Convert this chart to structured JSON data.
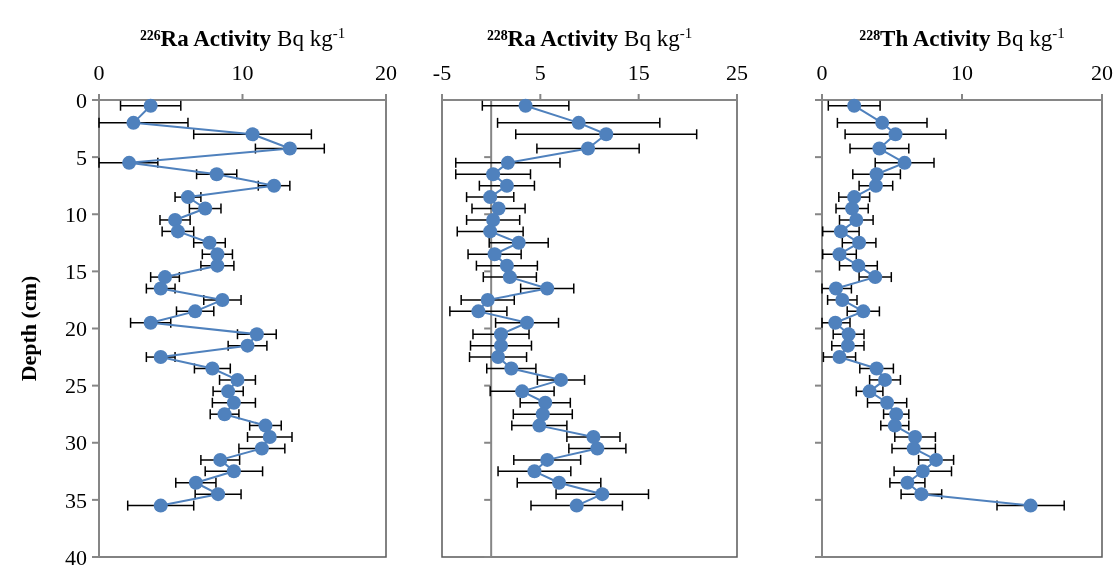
{
  "chart_data": [
    {
      "type": "line",
      "title": "²²⁶Ra Activity",
      "xlabel": "Bq kg$^{-1}$",
      "ylabel": "Depth (cm)",
      "xlim": [
        0,
        20
      ],
      "xticks": [
        0,
        10,
        20
      ],
      "ylim": [
        40,
        0
      ],
      "yticks": [
        0,
        5,
        10,
        15,
        20,
        25,
        30,
        35,
        40
      ],
      "marker": "circle",
      "line_style": "solid",
      "series": [
        {
          "color": "#4f81bd",
          "x": [
            3.6,
            2.4,
            10.7,
            13.3,
            2.1,
            8.2,
            12.2,
            6.2,
            7.4,
            5.3,
            5.5,
            7.7,
            8.25,
            8.25,
            4.6,
            4.3,
            8.6,
            6.7,
            3.6,
            11.0,
            10.35,
            4.3,
            7.9,
            9.65,
            9.0,
            9.4,
            8.75,
            11.6,
            11.9,
            11.35,
            8.45,
            9.4,
            6.75,
            8.3,
            4.3
          ],
          "values": [
            0.5,
            2,
            3,
            4.25,
            5.5,
            6.5,
            7.5,
            8.5,
            9.5,
            10.5,
            11.5,
            12.5,
            13.5,
            14.5,
            15.5,
            16.5,
            17.5,
            18.5,
            19.5,
            20.5,
            21.5,
            22.5,
            23.5,
            24.5,
            25.5,
            26.5,
            27.5,
            28.5,
            29.5,
            30.5,
            31.5,
            32.5,
            33.5,
            34.5,
            35.5
          ],
          "xerrors": [
            2.1,
            [
              0,
              6.2
            ],
            4.1,
            2.4,
            [
              0,
              4.1
            ],
            1.4,
            1.1,
            0.9,
            1.1,
            1.05,
            1.1,
            1.1,
            1.05,
            1.15,
            1.0,
            1.0,
            1.3,
            1.3,
            1.4,
            1.35,
            1.35,
            1.0,
            1.25,
            1.25,
            1.05,
            1.5,
            1.0,
            1.1,
            1.55,
            1.6,
            1.35,
            2.0,
            1.4,
            1.6,
            2.3
          ]
        }
      ]
    },
    {
      "type": "line",
      "title": "²²⁸Ra Activity",
      "xlabel": "Bq kg$^{-1}$",
      "xlim": [
        -5,
        25
      ],
      "xticks": [
        -5,
        5,
        15,
        25
      ],
      "ylim": [
        40,
        0
      ],
      "yticks": [
        0,
        5,
        10,
        15,
        20,
        25,
        30,
        35,
        40
      ],
      "tick_labels": "x",
      "marker": "circle",
      "line_style": "solid",
      "series": [
        {
          "color": "#4f81bd",
          "x": [
            3.5,
            8.9,
            11.7,
            9.85,
            1.7,
            0.2,
            1.6,
            -0.1,
            0.75,
            0.2,
            -0.1,
            2.8,
            0.35,
            1.6,
            1.9,
            5.7,
            -0.35,
            -1.3,
            3.65,
            1.0,
            1.0,
            0.7,
            2.05,
            7.1,
            3.15,
            5.5,
            5.25,
            4.9,
            10.4,
            10.8,
            5.7,
            4.4,
            6.9,
            11.3,
            8.7
          ],
          "values": [
            0.5,
            2,
            3,
            4.25,
            5.5,
            6.5,
            7.5,
            8.5,
            9.5,
            10.5,
            11.5,
            12.5,
            13.5,
            14.5,
            15.5,
            16.5,
            17.5,
            18.5,
            19.5,
            20.5,
            21.5,
            22.5,
            23.5,
            24.5,
            25.5,
            26.5,
            27.5,
            28.5,
            29.5,
            30.5,
            31.5,
            32.5,
            33.5,
            34.5,
            35.5
          ],
          "xerrors": [
            4.4,
            8.25,
            9.2,
            5.2,
            5.3,
            3.8,
            2.8,
            2.4,
            2.7,
            2.7,
            3.35,
            3.0,
            2.7,
            3.1,
            2.7,
            2.7,
            2.7,
            2.9,
            3.2,
            2.85,
            3.1,
            2.9,
            2.5,
            2.4,
            3.25,
            2.55,
            3.0,
            2.8,
            2.7,
            2.9,
            3.4,
            3.7,
            4.25,
            4.7,
            4.65
          ]
        }
      ]
    },
    {
      "type": "line",
      "title": "²²⁸Th Activity",
      "xlabel": "Bq kg$^{-1}$",
      "xlim": [
        0,
        20
      ],
      "xticks": [
        0,
        10,
        20
      ],
      "ylim": [
        40,
        0
      ],
      "yticks": [
        0,
        5,
        10,
        15,
        20,
        25,
        30,
        35,
        40
      ],
      "tick_labels": "x",
      "marker": "circle",
      "line_style": "solid",
      "series": [
        {
          "color": "#4f81bd",
          "x": [
            2.3,
            4.3,
            5.25,
            4.1,
            5.9,
            3.9,
            3.85,
            2.3,
            2.15,
            2.45,
            1.35,
            2.65,
            1.25,
            2.6,
            3.8,
            1.0,
            1.45,
            2.95,
            0.95,
            1.9,
            1.85,
            1.25,
            3.9,
            4.5,
            3.4,
            4.65,
            5.3,
            5.2,
            6.65,
            6.55,
            8.15,
            7.2,
            6.1,
            7.1,
            14.9
          ],
          "values": [
            0.5,
            2,
            3,
            4.25,
            5.5,
            6.5,
            7.5,
            8.5,
            9.5,
            10.5,
            11.5,
            12.5,
            13.5,
            14.5,
            15.5,
            16.5,
            17.5,
            18.5,
            19.5,
            20.5,
            21.5,
            22.5,
            23.5,
            24.5,
            25.5,
            26.5,
            27.5,
            28.5,
            29.5,
            30.5,
            31.5,
            32.5,
            33.5,
            34.5,
            35.5
          ],
          "xerrors": [
            1.85,
            3.2,
            3.6,
            2.1,
            2.1,
            1.7,
            1.2,
            1.1,
            1.15,
            1.2,
            1.3,
            1.2,
            1.2,
            1.35,
            1.15,
            [
              0,
              2.1
            ],
            1.05,
            1.15,
            [
              0,
              2.0
            ],
            1.1,
            1.15,
            1.15,
            1.2,
            1.1,
            0.95,
            1.4,
            0.9,
            1.0,
            1.45,
            1.55,
            1.25,
            2.05,
            1.25,
            1.45,
            2.4
          ]
        }
      ]
    }
  ]
}
